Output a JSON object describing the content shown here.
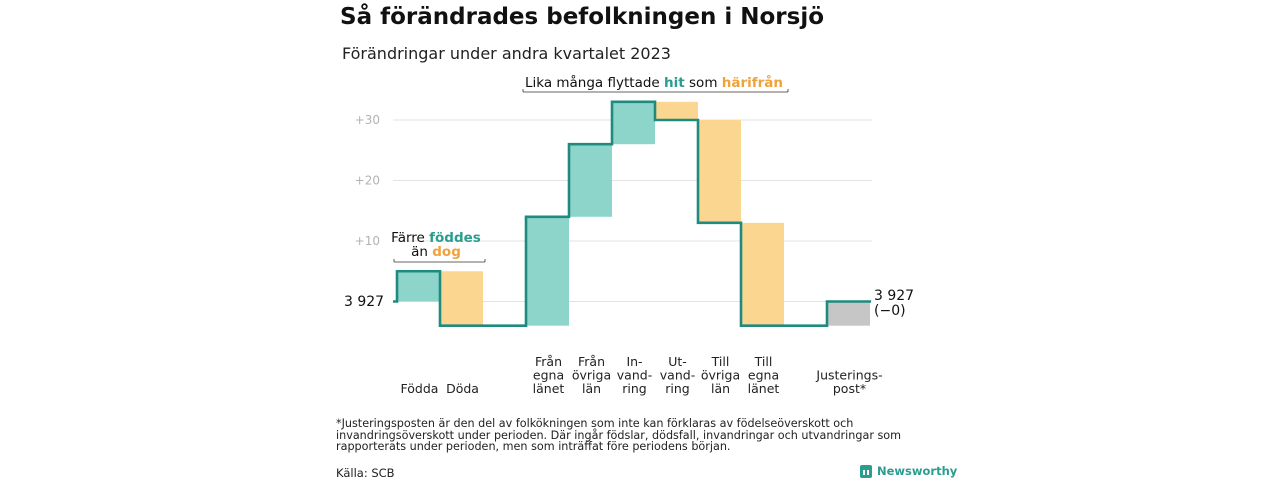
{
  "title": "Så förändrades befolkningen i Norsjö",
  "subtitle": "Förändringar under andra kvartalet 2023",
  "footnote": "*Justeringsposten är den del av folkökningen som inte kan förklaras av födelseöverskott och invandringsöverskott under perioden. Där ingår födslar, dödsfall, invandringar och utvandringar som rapporterats under perioden, men som inträffat före periodens början.",
  "source": "Källa: SCB",
  "brand": "Newsworthy",
  "colors": {
    "increase": "#8dd5cb",
    "decrease": "#fad691",
    "adjustment": "#c6c6c6",
    "line": "#1f8b7f",
    "teal_text": "#2a9d8f",
    "orange_text": "#f0a23c",
    "grid": "#e3e3e3"
  },
  "chart_data": {
    "type": "waterfall",
    "start_value": 3927,
    "start_label": "3 927",
    "end_label": "3 927",
    "end_change_label": "(−0)",
    "yticks": [
      {
        "value": 10,
        "label": "+10"
      },
      {
        "value": 20,
        "label": "+20"
      },
      {
        "value": 30,
        "label": "+30"
      }
    ],
    "steps": [
      {
        "label": [
          "Födda"
        ],
        "change": 5
      },
      {
        "label": [
          "Döda"
        ],
        "change": -9
      },
      {
        "label": [
          "Från",
          "egna",
          "länet"
        ],
        "change": 18
      },
      {
        "label": [
          "Från",
          "övriga",
          "län"
        ],
        "change": 12
      },
      {
        "label": [
          "In-",
          "vand-",
          "ring"
        ],
        "change": 7
      },
      {
        "label": [
          "Ut-",
          "vand-",
          "ring"
        ],
        "change": -3
      },
      {
        "label": [
          "Till",
          "övriga",
          "län"
        ],
        "change": -17
      },
      {
        "label": [
          "Till",
          "egna",
          "länet"
        ],
        "change": -17
      },
      {
        "label": [
          "Justerings-",
          "post*"
        ],
        "change": 4,
        "adjustment": true
      }
    ],
    "annotations": {
      "births_deaths": {
        "line1_plain": "Färre ",
        "line1_teal": "föddes",
        "line2_plain": "än ",
        "line2_orange": "dog"
      },
      "migration": {
        "plain1": "Lika många flyttade ",
        "teal": "hit",
        "plain2": " som ",
        "orange": "härifrån"
      }
    }
  }
}
